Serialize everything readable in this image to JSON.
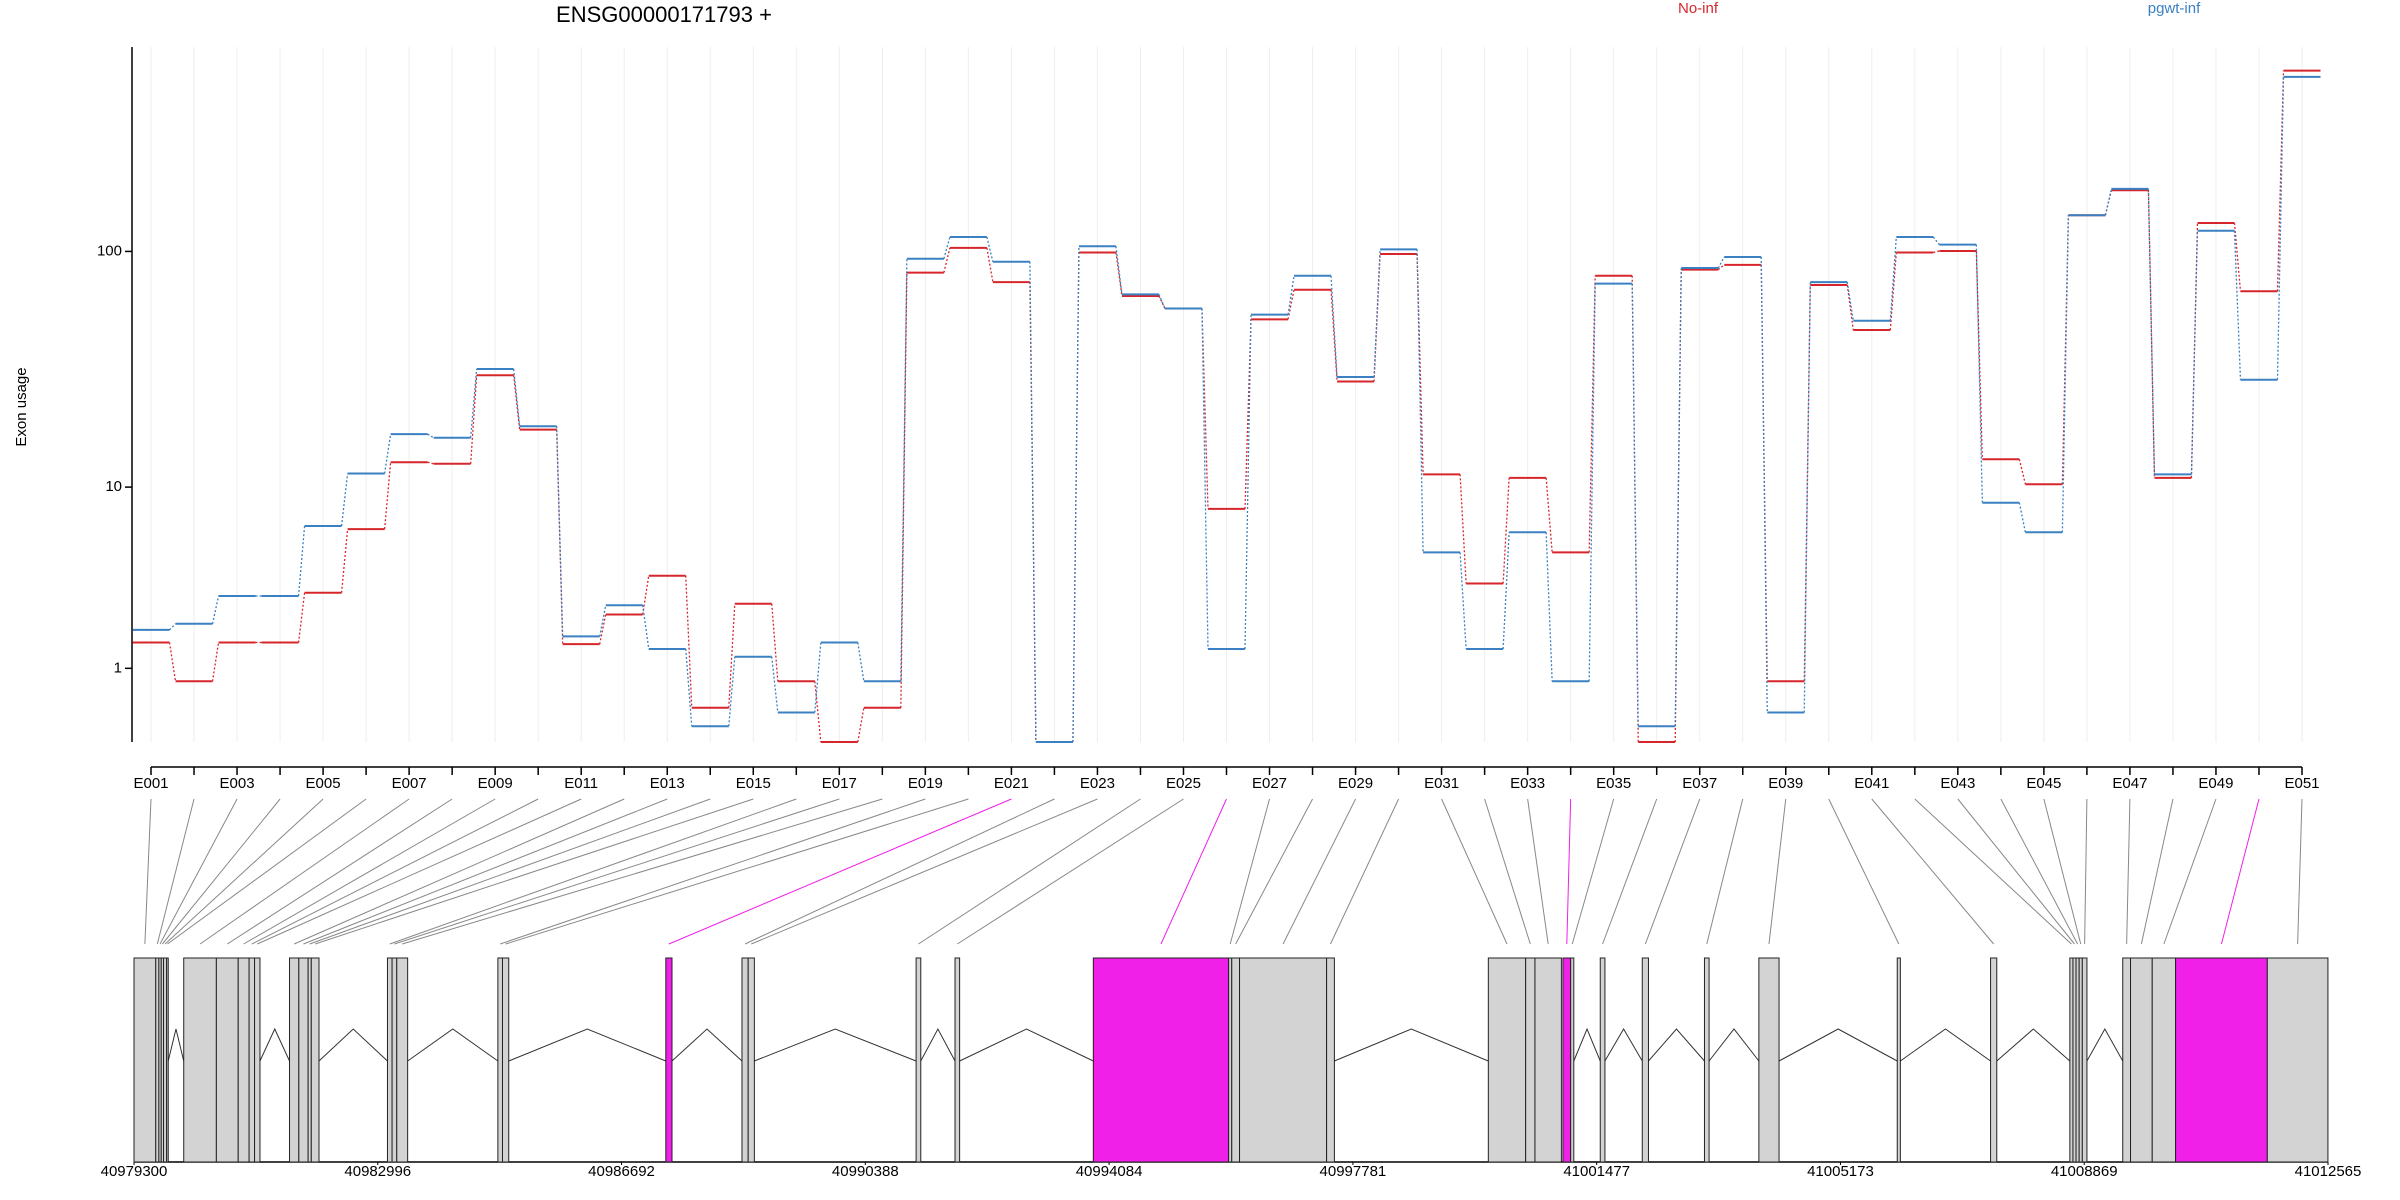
{
  "chart_data": {
    "type": "line",
    "title": "ENSG00000171793 +",
    "y_label": "Exon usage",
    "y_scale": "log1p",
    "categories": [
      "E001",
      null,
      "E003",
      null,
      "E005",
      null,
      "E007",
      null,
      "E009",
      null,
      "E011",
      null,
      "E013",
      null,
      "E015",
      null,
      "E017",
      null,
      "E019",
      null,
      "E021",
      null,
      "E023",
      null,
      "E025",
      null,
      "E027",
      null,
      "E029",
      null,
      "E031",
      null,
      "E033",
      null,
      "E035",
      null,
      "E037",
      null,
      "E039",
      null,
      "E041",
      null,
      "E043",
      null,
      "E045",
      null,
      "E047",
      null,
      "E049",
      null,
      "E051"
    ],
    "series": [
      {
        "name": "No-inf",
        "color": "#d7262b",
        "values": [
          1.55,
          0.77,
          1.55,
          1.55,
          3.07,
          6.41,
          12.9,
          12.7,
          30.5,
          17.9,
          1.51,
          2.32,
          3.78,
          0.38,
          2.67,
          0.77,
          0,
          0.38,
          81.7,
          103.4,
          74.7,
          0,
          99,
          65.4,
          58,
          7.96,
          52.3,
          69.4,
          28.7,
          97.6,
          11.4,
          3.44,
          11.0,
          4.95,
          79.3,
          0,
          84.1,
          88,
          0.77,
          72.6,
          47.2,
          99,
          100.4,
          13.3,
          10.3,
          141,
          178.5,
          11.0,
          131,
          68.4,
          552
        ]
      },
      {
        "name": "pgwt-inf",
        "color": "#3a80c2",
        "values": [
          1.87,
          2.04,
          2.95,
          2.95,
          6.63,
          11.5,
          17.1,
          16.5,
          32.4,
          18.5,
          1.7,
          2.62,
          1.4,
          0.16,
          1.23,
          0.32,
          1.55,
          0.77,
          93.3,
          114.7,
          90.6,
          0,
          105,
          66.4,
          58,
          1.4,
          54.7,
          79.3,
          30.0,
          102,
          4.95,
          1.4,
          6.19,
          0.77,
          73.6,
          0.16,
          85.4,
          94.8,
          0.32,
          74.7,
          51.6,
          114.7,
          106.6,
          8.5,
          6.19,
          141,
          181,
          11.4,
          121.7,
          29.2,
          521
        ]
      }
    ],
    "ylim": [
      0,
      690
    ],
    "yticks": [
      1,
      10,
      100
    ],
    "gene_model": {
      "xlim": [
        40979300,
        41012565
      ],
      "xticks": [
        40979300,
        40982996,
        40986692,
        40990388,
        40994084,
        40997781,
        41001477,
        41005173,
        41008869,
        41012565
      ],
      "exon_color": "#d3d3d3",
      "highlight_color": "#f020e8",
      "highlighted": [
        20,
        25,
        33,
        49
      ],
      "exons": [
        [
          40979300,
          40979630
        ],
        [
          40979630,
          40979677
        ],
        [
          40979677,
          40979713
        ],
        [
          40979713,
          40979748
        ],
        [
          40979748,
          40979795
        ],
        [
          40979795,
          40979819
        ],
        [
          40980054,
          40980549
        ],
        [
          40980549,
          40980880
        ],
        [
          40980880,
          40981045
        ],
        [
          40981045,
          40981128
        ],
        [
          40981128,
          40981210
        ],
        [
          40981658,
          40981799
        ],
        [
          40981799,
          40981940
        ],
        [
          40981940,
          40981988
        ],
        [
          40981988,
          40982105
        ],
        [
          40983143,
          40983213
        ],
        [
          40983213,
          40983284
        ],
        [
          40983284,
          40983449
        ],
        [
          40984817,
          40984887
        ],
        [
          40984887,
          40984982
        ],
        [
          40987363,
          40987457
        ],
        [
          40988518,
          40988612
        ],
        [
          40988612,
          40988706
        ],
        [
          40991158,
          40991229
        ],
        [
          40991748,
          40991818
        ],
        [
          40993845,
          40995897
        ],
        [
          40995897,
          40995944
        ],
        [
          40995944,
          40996062
        ],
        [
          40996062,
          40997382
        ],
        [
          40997382,
          40997500
        ],
        [
          40999834,
          41000400
        ],
        [
          41000400,
          41000541
        ],
        [
          41000541,
          41000942
        ],
        [
          41000965,
          41001083
        ],
        [
          41001083,
          41001130
        ],
        [
          41001531,
          41001602
        ],
        [
          41002168,
          41002262
        ],
        [
          41003111,
          41003181
        ],
        [
          41003936,
          41004242
        ],
        [
          41006034,
          41006081
        ],
        [
          41007449,
          41007543
        ],
        [
          41008651,
          41008698
        ],
        [
          41008698,
          41008745
        ],
        [
          41008745,
          41008792
        ],
        [
          41008792,
          41008840
        ],
        [
          41008840,
          41008910
        ],
        [
          41009453,
          41009571
        ],
        [
          41009571,
          41009900
        ],
        [
          41009900,
          41010254
        ],
        [
          41010254,
          41011645
        ],
        [
          41011645,
          41012564
        ]
      ]
    }
  }
}
